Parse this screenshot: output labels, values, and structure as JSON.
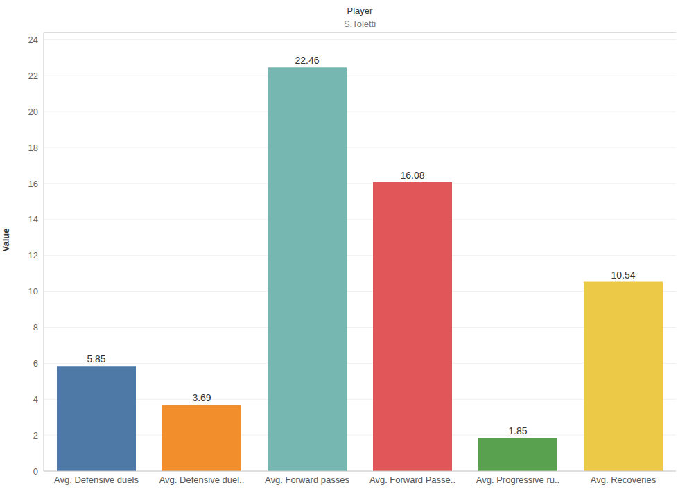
{
  "chart_data": {
    "type": "bar",
    "title": "Player",
    "subtitle": "S.Toletti",
    "y_label": "Value",
    "categories": [
      "Avg. Defensive duels",
      "Avg. Defensive duel..",
      "Avg. Forward passes",
      "Avg. Forward Passe..",
      "Avg. Progressive ru..",
      "Avg. Recoveries"
    ],
    "values": [
      5.85,
      3.69,
      22.46,
      16.08,
      1.85,
      10.54
    ],
    "colors": [
      "#4e79a7",
      "#f28e2b",
      "#76b7b2",
      "#e15759",
      "#59a14f",
      "#edc948"
    ],
    "ylim": [
      0,
      24.4
    ],
    "yticks": [
      0,
      2,
      4,
      6,
      8,
      10,
      12,
      14,
      16,
      18,
      20,
      22,
      24
    ],
    "grid": true,
    "data_labels": true
  }
}
